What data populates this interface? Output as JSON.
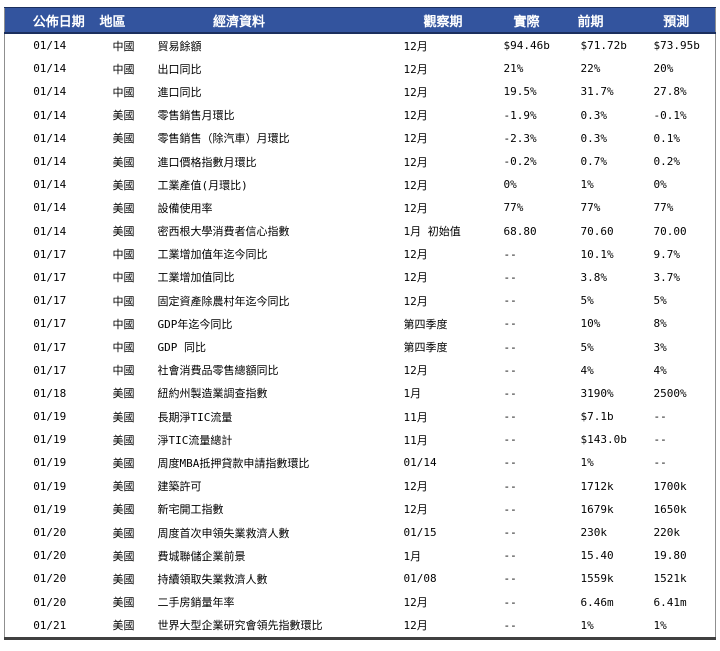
{
  "table": {
    "column_names": [
      "publish-date",
      "region",
      "indicator",
      "observation-period",
      "actual",
      "prior",
      "forecast"
    ],
    "headers": [
      "公佈日期",
      "地區",
      "經濟資料",
      "觀察期",
      "實際",
      "前期",
      "預測"
    ],
    "rows": [
      [
        "01/14",
        "中國",
        "貿易餘額",
        "12月",
        "$94.46b",
        "$71.72b",
        "$73.95b"
      ],
      [
        "01/14",
        "中國",
        "出口同比",
        "12月",
        "21%",
        "22%",
        "20%"
      ],
      [
        "01/14",
        "中國",
        "進口同比",
        "12月",
        "19.5%",
        "31.7%",
        "27.8%"
      ],
      [
        "01/14",
        "美國",
        "零售銷售月環比",
        "12月",
        "-1.9%",
        "0.3%",
        "-0.1%"
      ],
      [
        "01/14",
        "美國",
        "零售銷售（除汽車）月環比",
        "12月",
        "-2.3%",
        "0.3%",
        "0.1%"
      ],
      [
        "01/14",
        "美國",
        "進口價格指數月環比",
        "12月",
        "-0.2%",
        "0.7%",
        "0.2%"
      ],
      [
        "01/14",
        "美國",
        "工業產值(月環比)",
        "12月",
        "0%",
        "1%",
        "0%"
      ],
      [
        "01/14",
        "美國",
        "設備使用率",
        "12月",
        "77%",
        "77%",
        "77%"
      ],
      [
        "01/14",
        "美國",
        "密西根大學消費者信心指數",
        "1月 初始值",
        "68.80",
        "70.60",
        "70.00"
      ],
      [
        "01/17",
        "中國",
        "工業增加值年迄今同比",
        "12月",
        "--",
        "10.1%",
        "9.7%"
      ],
      [
        "01/17",
        "中國",
        "工業增加值同比",
        "12月",
        "--",
        "3.8%",
        "3.7%"
      ],
      [
        "01/17",
        "中國",
        "固定資產除農村年迄今同比",
        "12月",
        "--",
        "5%",
        "5%"
      ],
      [
        "01/17",
        "中國",
        "GDP年迄今同比",
        "第四季度",
        "--",
        "10%",
        "8%"
      ],
      [
        "01/17",
        "中國",
        "GDP 同比",
        "第四季度",
        "--",
        "5%",
        "3%"
      ],
      [
        "01/17",
        "中國",
        "社會消費品零售總額同比",
        "12月",
        "--",
        "4%",
        "4%"
      ],
      [
        "01/18",
        "美國",
        "紐約州製造業調查指數",
        "1月",
        "--",
        "3190%",
        "2500%"
      ],
      [
        "01/19",
        "美國",
        "長期淨TIC流量",
        "11月",
        "--",
        "$7.1b",
        "--"
      ],
      [
        "01/19",
        "美國",
        "淨TIC流量總計",
        "11月",
        "--",
        "$143.0b",
        "--"
      ],
      [
        "01/19",
        "美國",
        "周度MBA抵押貸款申請指數環比",
        "01/14",
        "--",
        "1%",
        "--"
      ],
      [
        "01/19",
        "美國",
        "建築許可",
        "12月",
        "--",
        "1712k",
        "1700k"
      ],
      [
        "01/19",
        "美國",
        "新宅開工指數",
        "12月",
        "--",
        "1679k",
        "1650k"
      ],
      [
        "01/20",
        "美國",
        "周度首次申領失業救濟人數",
        "01/15",
        "--",
        "230k",
        "220k"
      ],
      [
        "01/20",
        "美國",
        "費城聯儲企業前景",
        "1月",
        "--",
        "15.40",
        "19.80"
      ],
      [
        "01/20",
        "美國",
        "持續領取失業救濟人數",
        "01/08",
        "--",
        "1559k",
        "1521k"
      ],
      [
        "01/20",
        "美國",
        "二手房銷量年率",
        "12月",
        "--",
        "6.46m",
        "6.41m"
      ],
      [
        "01/21",
        "美國",
        "世界大型企業研究會領先指數環比",
        "12月",
        "--",
        "1%",
        "1%"
      ]
    ],
    "colors": {
      "header_bg": "#33549E",
      "header_text": "#FFFFFF",
      "header_border": "#1B2F5E",
      "side_border": "#8F8F8F",
      "bottom_border": "#404040",
      "row_text": "#000000",
      "row_bg": "#FFFFFF"
    }
  }
}
